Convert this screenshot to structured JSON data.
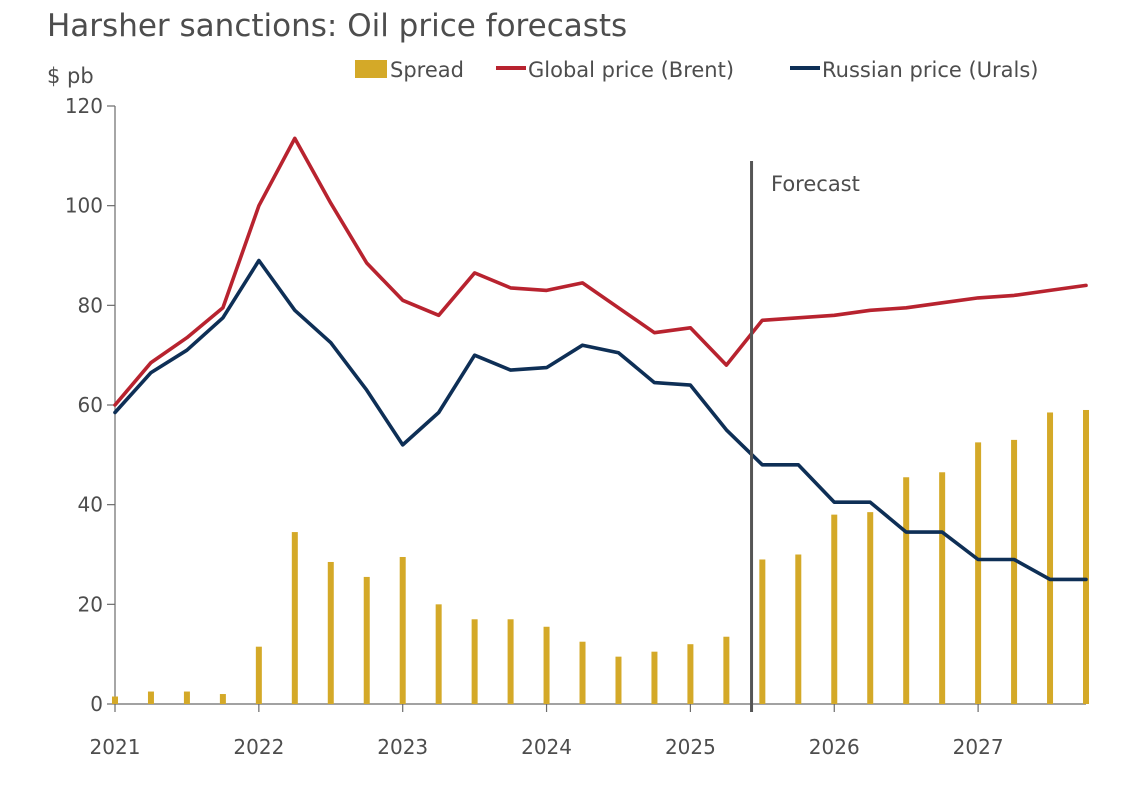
{
  "chart_data": {
    "type": "bar+line",
    "title": "Harsher sanctions: Oil price forecasts",
    "ylabel": "$ pb",
    "ylim": [
      0,
      120
    ],
    "yticks": [
      0,
      20,
      40,
      60,
      80,
      100,
      120
    ],
    "x_tick_labels": [
      {
        "value": 0,
        "label": "2021"
      },
      {
        "value": 4,
        "label": "2022"
      },
      {
        "value": 8,
        "label": "2023"
      },
      {
        "value": 12,
        "label": "2024"
      },
      {
        "value": 16,
        "label": "2025"
      },
      {
        "value": 20,
        "label": "2026"
      },
      {
        "value": 24,
        "label": "2027"
      }
    ],
    "x": [
      0,
      1,
      2,
      3,
      4,
      5,
      6,
      7,
      8,
      9,
      10,
      11,
      12,
      13,
      14,
      15,
      16,
      17,
      18,
      19,
      20,
      21,
      22,
      23,
      24,
      25,
      26,
      27
    ],
    "x_max": 27,
    "legend": [
      {
        "name": "Spread",
        "kind": "bar",
        "color": "#D4A928"
      },
      {
        "name": "Global price (Brent)",
        "kind": "line",
        "color": "#B8232F"
      },
      {
        "name": "Russian price (Urals)",
        "kind": "line",
        "color": "#0E2F56"
      }
    ],
    "series": [
      {
        "name": "Spread",
        "kind": "bar",
        "color": "#D4A928",
        "values": [
          1.5,
          2.5,
          2.5,
          2,
          11.5,
          34.5,
          28.5,
          25.5,
          29.5,
          20,
          17,
          17,
          15.5,
          12.5,
          9.5,
          10.5,
          12,
          13.5,
          29,
          30,
          38,
          38.5,
          45.5,
          46.5,
          52.5,
          53,
          58.5,
          59
        ]
      },
      {
        "name": "Global price (Brent)",
        "kind": "line",
        "color": "#B8232F",
        "values": [
          60,
          68.5,
          73.5,
          79.5,
          100,
          113.5,
          100.5,
          88.5,
          81,
          78,
          86.5,
          83.5,
          83,
          84.5,
          79.5,
          74.5,
          75.5,
          68,
          77,
          77.5,
          78,
          79,
          79.5,
          80.5,
          81.5,
          82,
          83,
          84
        ]
      },
      {
        "name": "Russian price (Urals)",
        "kind": "line",
        "color": "#0E2F56",
        "values": [
          58.5,
          66.5,
          71,
          77.5,
          89,
          79,
          72.5,
          63,
          52,
          58.5,
          70,
          67,
          67.5,
          72,
          70.5,
          64.5,
          64,
          55,
          48,
          48,
          40.5,
          40.5,
          34.5,
          34.5,
          29,
          29,
          25,
          25
        ]
      }
    ],
    "forecast_start": 17.7,
    "annotation": "Forecast",
    "grid": false
  }
}
